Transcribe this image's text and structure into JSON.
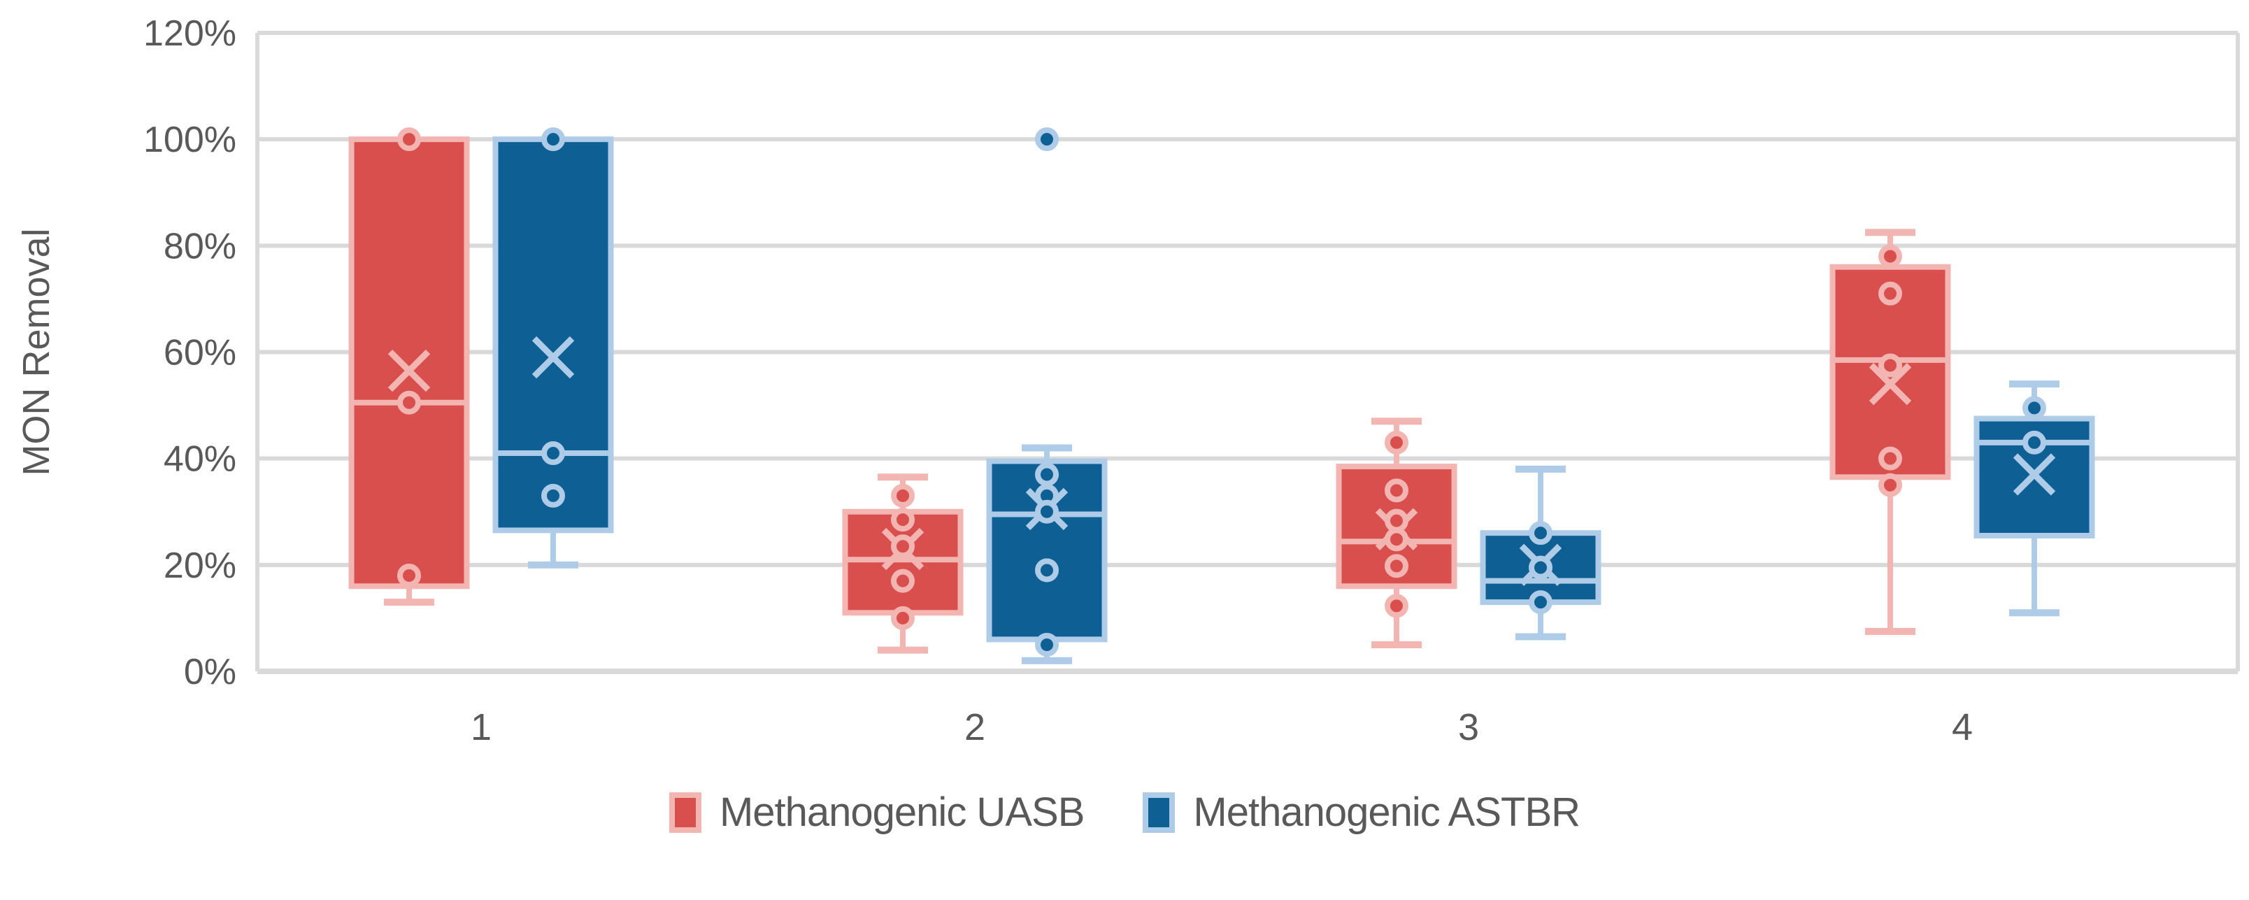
{
  "chart_data": {
    "type": "boxplot",
    "title": "",
    "ylabel": "MON Removal",
    "xlabel": "",
    "categories": [
      "1",
      "2",
      "3",
      "4"
    ],
    "y_axis": {
      "min": 0,
      "max": 120,
      "tick_step": 20,
      "tick_labels": [
        "0%",
        "20%",
        "40%",
        "60%",
        "80%",
        "100%",
        "120%"
      ],
      "tick_values": [
        0,
        20,
        40,
        60,
        80,
        100,
        120
      ]
    },
    "grid": "horizontal",
    "gridline_color": "#D9D9D9",
    "axis_text_color": "#595959",
    "legend_position": "bottom",
    "series": [
      {
        "name": "Methanogenic UASB",
        "color": "#D94F4E",
        "light_color": "#F3B5B1",
        "boxes": [
          {
            "category": "1",
            "whisker_low": 13,
            "q1": 16,
            "median": 50.5,
            "q3": 100,
            "whisker_high": null,
            "mean": 56.5,
            "points": [
              100,
              50.5,
              18
            ]
          },
          {
            "category": "2",
            "whisker_low": 4,
            "q1": 11,
            "median": 21,
            "q3": 30,
            "whisker_high": 36.5,
            "mean": 23,
            "points": [
              33,
              28.5,
              23.5,
              17,
              10
            ]
          },
          {
            "category": "3",
            "whisker_low": 5,
            "q1": 16,
            "median": 24.4,
            "q3": 38.5,
            "whisker_high": 47,
            "mean": 26.7,
            "points": [
              43,
              34,
              28.3,
              24.8,
              19.8,
              12.3
            ]
          },
          {
            "category": "4",
            "whisker_low": 7.5,
            "q1": 36.5,
            "median": 58.5,
            "q3": 76,
            "whisker_high": 82.5,
            "mean": 54,
            "points": [
              78,
              71,
              57.5,
              40,
              35
            ]
          }
        ]
      },
      {
        "name": "Methanogenic ASTBR",
        "color": "#0E5F94",
        "light_color": "#AECBE8",
        "boxes": [
          {
            "category": "1",
            "whisker_low": 20,
            "q1": 26.5,
            "median": 41,
            "q3": 100,
            "whisker_high": null,
            "mean": 59,
            "points": [
              100,
              41,
              33
            ]
          },
          {
            "category": "2",
            "whisker_low": 2,
            "q1": 6,
            "median": 29.5,
            "q3": 39.5,
            "whisker_high": 42,
            "mean": 30.5,
            "points": [
              100,
              37,
              33,
              30,
              19,
              5
            ]
          },
          {
            "category": "3",
            "whisker_low": 6.5,
            "q1": 13,
            "median": 17,
            "q3": 26,
            "whisker_high": 38,
            "mean": 20,
            "points": [
              26,
              19.5,
              13
            ]
          },
          {
            "category": "4",
            "whisker_low": 11,
            "q1": 25.5,
            "median": 43,
            "q3": 47.5,
            "whisker_high": 54,
            "mean": 37,
            "points": [
              49.5,
              43
            ]
          }
        ]
      }
    ]
  }
}
